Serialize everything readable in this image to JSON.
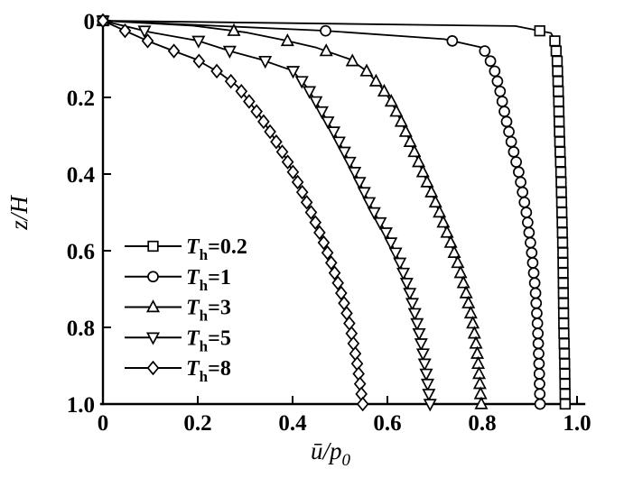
{
  "figure": {
    "background_color": "#ffffff",
    "foreground_color": "#000000",
    "marker_fill_color": "#ffffff"
  },
  "chart_data": {
    "type": "line",
    "title": "",
    "xlabel": "ū/p₀",
    "ylabel": "z/H",
    "xlabel_parts": [
      {
        "t": "ū",
        "italic": true
      },
      {
        "t": "/"
      },
      {
        "t": "p",
        "italic": true
      },
      {
        "t": "0",
        "sub": true
      }
    ],
    "ylabel_parts": [
      {
        "t": "z",
        "italic": true
      },
      {
        "t": "/"
      },
      {
        "t": "H",
        "italic": true
      }
    ],
    "xlim": [
      0,
      1.0
    ],
    "ylim": [
      0,
      1.0
    ],
    "y_axis_inverted": true,
    "grid": false,
    "legend_position": "inside-left-middle",
    "x_ticks": [
      0,
      0.2,
      0.4,
      0.6,
      0.8,
      1.0
    ],
    "x_tick_labels": [
      "0",
      "0.2",
      "0.4",
      "0.6",
      "0.8",
      "1.0"
    ],
    "y_ticks": [
      0,
      0.2,
      0.4,
      0.6,
      0.8,
      1.0
    ],
    "y_tick_labels": [
      "0",
      "0.2",
      "0.4",
      "0.6",
      "0.8",
      "1.0"
    ],
    "marker_interval_z": 0.0263,
    "series": [
      {
        "id": "Th-0.2",
        "label": "Tₕ=0.2",
        "label_parts": {
          "var": "T",
          "sub": "h",
          "rest": "=0.2"
        },
        "marker": "square",
        "z": [
          0,
          0.014,
          0.032,
          0.05,
          0.1,
          0.2,
          0.3,
          0.4,
          0.5,
          0.6,
          0.7,
          0.8,
          0.9,
          1.0
        ],
        "u": [
          0,
          0.87,
          0.945,
          0.953,
          0.958,
          0.961,
          0.963,
          0.966,
          0.968,
          0.97,
          0.971,
          0.972,
          0.974,
          0.975
        ]
      },
      {
        "id": "Th-1",
        "label": "Tₕ=1",
        "label_parts": {
          "var": "T",
          "sub": "h",
          "rest": "=1"
        },
        "marker": "circle",
        "z": [
          0,
          0.026,
          0.048,
          0.07,
          0.09,
          0.13,
          0.18,
          0.25,
          0.32,
          0.4,
          0.5,
          0.6,
          0.7,
          0.8,
          0.9,
          1.0
        ],
        "u": [
          0,
          0.466,
          0.72,
          0.8,
          0.812,
          0.826,
          0.837,
          0.849,
          0.862,
          0.878,
          0.893,
          0.904,
          0.912,
          0.917,
          0.92,
          0.922
        ]
      },
      {
        "id": "Th-3",
        "label": "Tₕ=3",
        "label_parts": {
          "var": "T",
          "sub": "h",
          "rest": "=3"
        },
        "marker": "triangle-up",
        "z": [
          0,
          0.013,
          0.03,
          0.05,
          0.07,
          0.1,
          0.13,
          0.17,
          0.21,
          0.26,
          0.31,
          0.36,
          0.41,
          0.46,
          0.51,
          0.57,
          0.63,
          0.7,
          0.78,
          0.86,
          0.93,
          1.0
        ],
        "u": [
          0,
          0.19,
          0.3,
          0.38,
          0.45,
          0.52,
          0.555,
          0.585,
          0.608,
          0.628,
          0.646,
          0.663,
          0.68,
          0.697,
          0.713,
          0.731,
          0.748,
          0.764,
          0.779,
          0.789,
          0.794,
          0.798
        ]
      },
      {
        "id": "Th-5",
        "label": "Tₕ=5",
        "label_parts": {
          "var": "T",
          "sub": "h",
          "rest": "=5"
        },
        "marker": "triangle-down",
        "z": [
          0,
          0.03,
          0.052,
          0.08,
          0.1,
          0.13,
          0.17,
          0.21,
          0.25,
          0.29,
          0.33,
          0.37,
          0.41,
          0.45,
          0.5,
          0.55,
          0.62,
          0.7,
          0.78,
          0.86,
          0.93,
          1.0
        ],
        "u": [
          0,
          0.1,
          0.2,
          0.27,
          0.33,
          0.4,
          0.428,
          0.449,
          0.468,
          0.487,
          0.504,
          0.521,
          0.537,
          0.552,
          0.572,
          0.596,
          0.623,
          0.645,
          0.661,
          0.674,
          0.683,
          0.69
        ]
      },
      {
        "id": "Th-8",
        "label": "Tₕ=8",
        "label_parts": {
          "var": "T",
          "sub": "h",
          "rest": "=8"
        },
        "marker": "diamond",
        "z": [
          0,
          0.026,
          0.052,
          0.074,
          0.1,
          0.135,
          0.17,
          0.2,
          0.25,
          0.3,
          0.35,
          0.4,
          0.46,
          0.52,
          0.58,
          0.64,
          0.72,
          0.8,
          0.9,
          1.0
        ],
        "u": [
          0,
          0.046,
          0.093,
          0.139,
          0.195,
          0.245,
          0.283,
          0.302,
          0.332,
          0.358,
          0.382,
          0.403,
          0.425,
          0.446,
          0.466,
          0.484,
          0.505,
          0.522,
          0.537,
          0.548
        ]
      }
    ]
  }
}
